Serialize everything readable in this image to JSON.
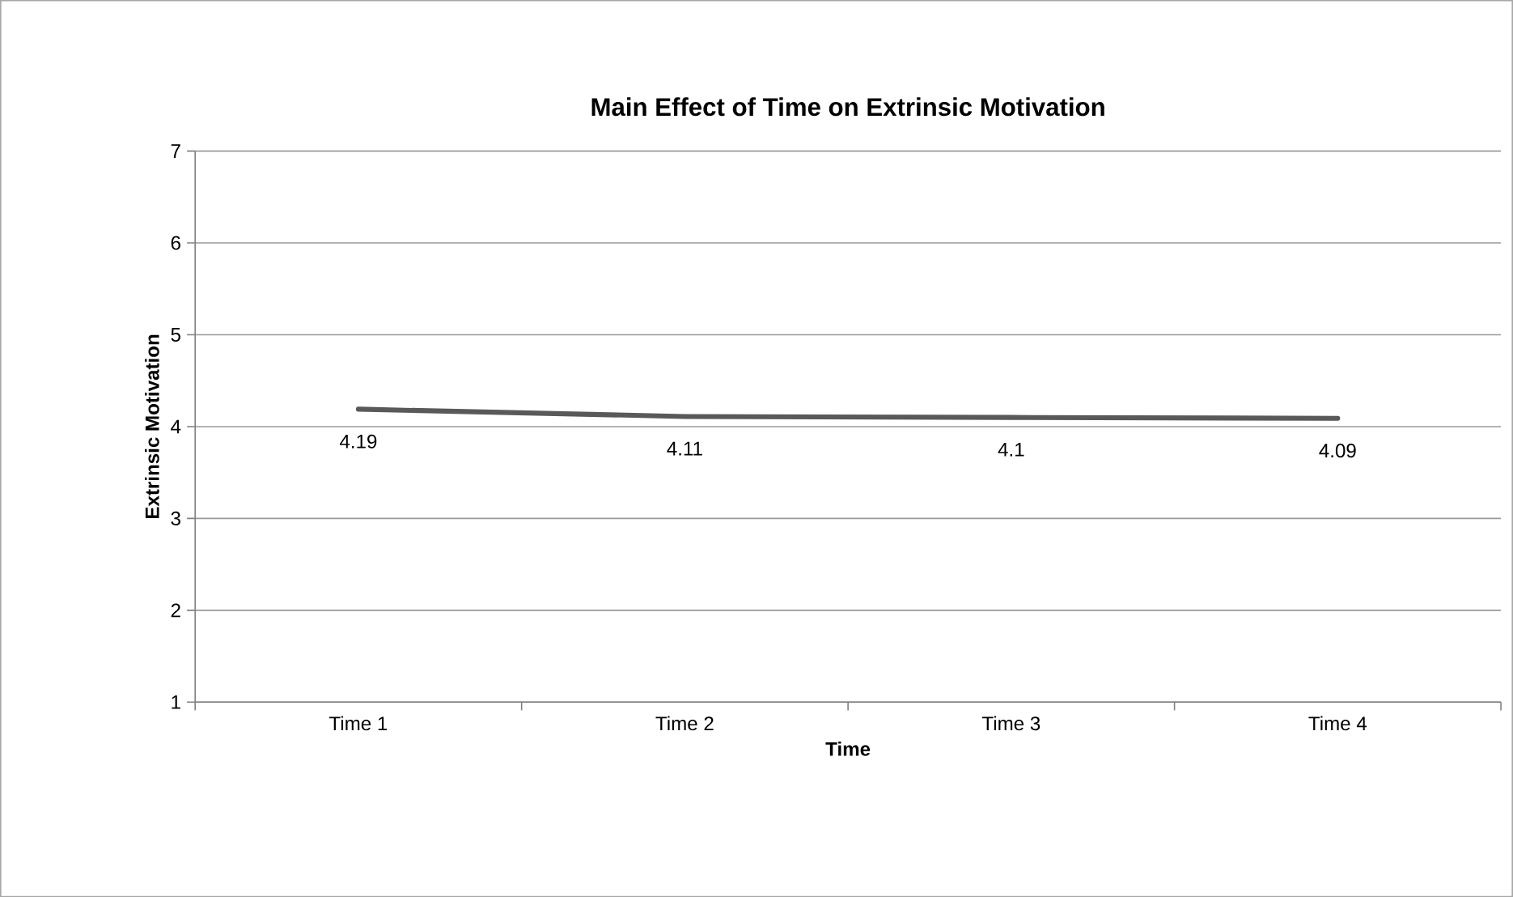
{
  "chart_data": {
    "type": "line",
    "title": "Main Effect of Time on Extrinsic Motivation",
    "xlabel": "Time",
    "ylabel": "Extrinsic Motivation",
    "categories": [
      "Time 1",
      "Time 2",
      "Time 3",
      "Time 4"
    ],
    "series": [
      {
        "color": "#595959",
        "values": [
          4.19,
          4.11,
          4.1,
          4.09
        ]
      }
    ],
    "ylim": [
      1,
      7
    ],
    "yticks": [
      1,
      2,
      3,
      4,
      5,
      6,
      7
    ],
    "grid": "y",
    "data_labels": true,
    "marker": "none",
    "line_style": "solid"
  }
}
